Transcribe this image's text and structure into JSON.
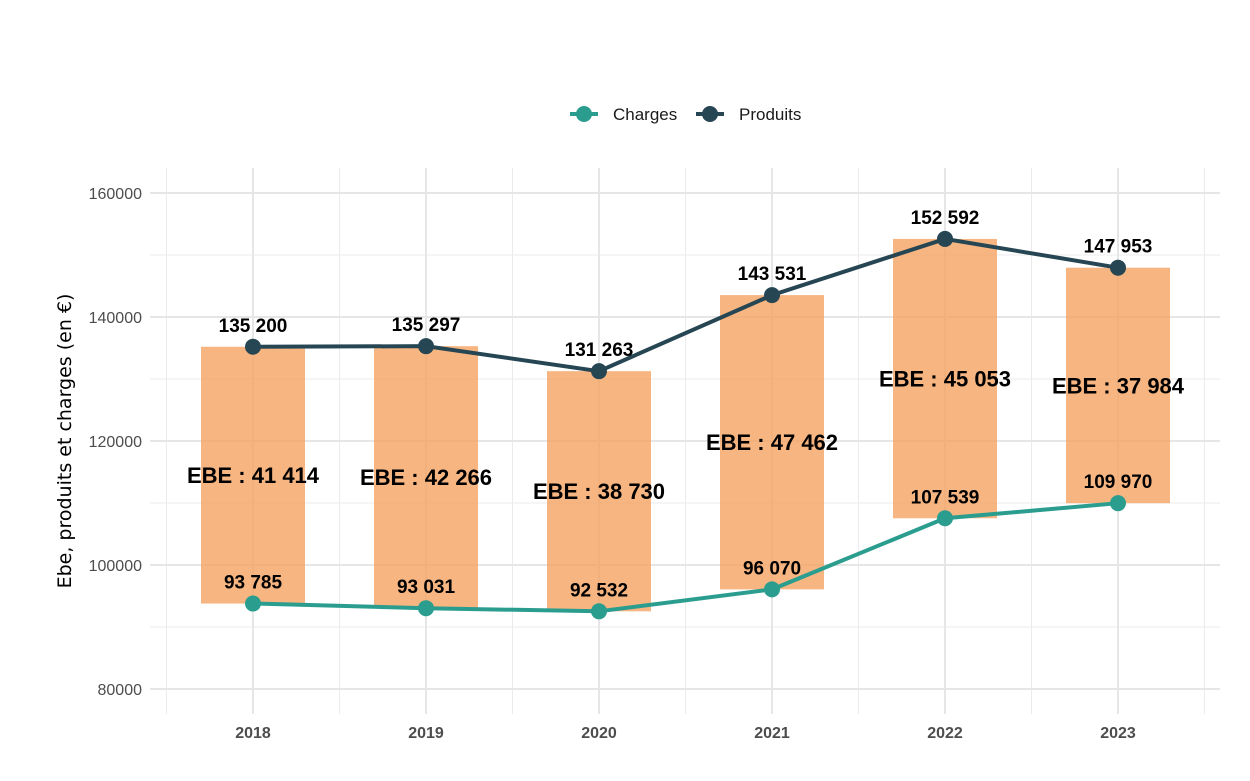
{
  "chart_data": {
    "type": "bar+line",
    "categories": [
      "2018",
      "2019",
      "2020",
      "2021",
      "2022",
      "2023"
    ],
    "ylabel": "Ebe, produits et charges (en €)",
    "xlabel": "",
    "ylim": [
      77000,
      164000
    ],
    "yticks": [
      80000,
      100000,
      120000,
      140000,
      160000
    ],
    "grid": true,
    "legend_position": "top",
    "series": [
      {
        "name": "Charges",
        "color": "#2a9d8f",
        "values": [
          93785,
          93031,
          92532,
          96070,
          107539,
          109970
        ],
        "labels": [
          "93 785",
          "93 031",
          "92 532",
          "96 070",
          "107 539",
          "109 970"
        ]
      },
      {
        "name": "Produits",
        "color": "#264653",
        "values": [
          135200,
          135297,
          131263,
          143531,
          152592,
          147953
        ],
        "labels": [
          "135 200",
          "135 297",
          "131 263",
          "143 531",
          "152 592",
          "147 953"
        ]
      }
    ],
    "bars": {
      "color": "#f4a261",
      "description_values": "EBE = Produits - Charges",
      "values": [
        41414,
        42266,
        38730,
        47462,
        45053,
        37984
      ],
      "labels": [
        "EBE : 41 414",
        "EBE : 42 266",
        "EBE : 38 730",
        "EBE : 47 462",
        "EBE : 45 053",
        "EBE : 37 984"
      ]
    }
  }
}
